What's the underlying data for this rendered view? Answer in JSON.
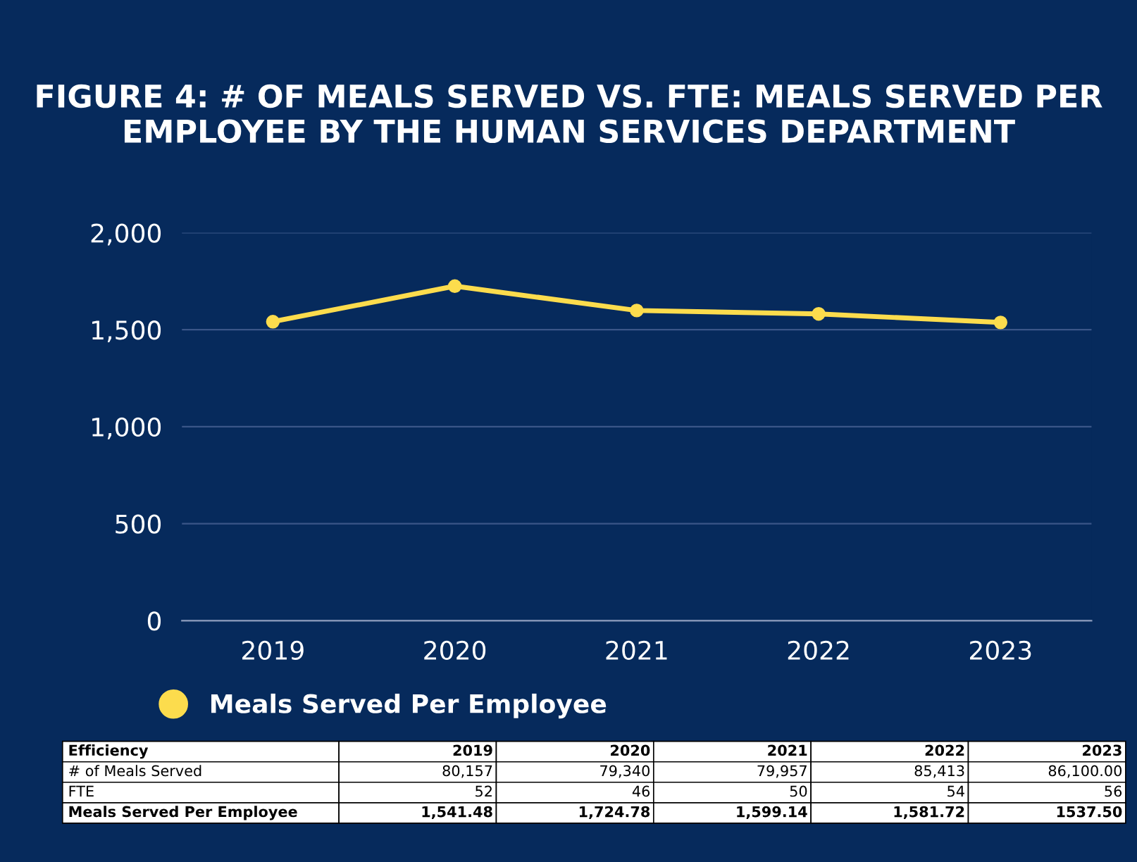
{
  "chart_data": {
    "type": "line",
    "title": "FIGURE 4: # OF MEALS SERVED VS. FTE: MEALS SERVED PER EMPLOYEE BY THE HUMAN SERVICES DEPARTMENT",
    "categories": [
      "2019",
      "2020",
      "2021",
      "2022",
      "2023"
    ],
    "series": [
      {
        "name": "Meals Served Per Employee",
        "color": "#fcdc4d",
        "values": [
          1541.48,
          1724.78,
          1599.14,
          1581.72,
          1537.5
        ]
      }
    ],
    "ylim": [
      0,
      2000
    ],
    "yticks": [
      {
        "value": 0,
        "label": "0"
      },
      {
        "value": 500,
        "label": "500"
      },
      {
        "value": 1000,
        "label": "1,000"
      },
      {
        "value": 1500,
        "label": "1,500"
      },
      {
        "value": 2000,
        "label": "2,000"
      }
    ],
    "grid": "y",
    "legend": "bottom left",
    "marker": "circle",
    "line_style": "solid",
    "annotations": [
      "Efficiency",
      "2019",
      "2020",
      "2021",
      "2022",
      "2023",
      "# of Meals Served",
      "80,157",
      "79,340",
      "79,957",
      "85,413",
      "86,100.00",
      "FTE",
      "52",
      "46",
      "50",
      "54",
      "56",
      "Meals Served Per Employee",
      "1,541.48",
      "1,724.78",
      "1,599.14",
      "1,581.72",
      "1537.50"
    ]
  }
}
